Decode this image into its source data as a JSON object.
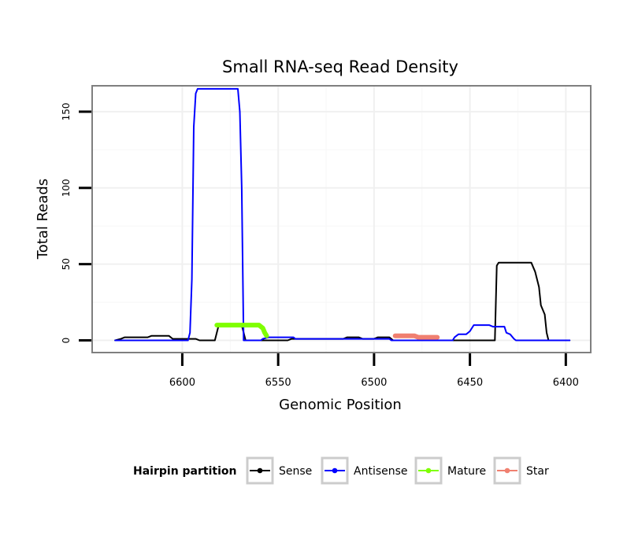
{
  "chart_data": {
    "type": "line",
    "title": "Small RNA-seq Read Density",
    "xlabel": "Genomic Position",
    "ylabel": "Total Reads",
    "x_reversed": true,
    "xlim": [
      6647,
      6387
    ],
    "ylim": [
      -8,
      167
    ],
    "xticks": [
      6600,
      6550,
      6500,
      6450,
      6400
    ],
    "yticks": [
      0,
      50,
      100,
      150
    ],
    "grid": true,
    "legend": {
      "title": "Hairpin partition",
      "position": "bottom",
      "entries": [
        "Sense",
        "Antisense",
        "Mature",
        "Star"
      ]
    },
    "series": [
      {
        "name": "Sense",
        "color": "#000000",
        "width": 2,
        "points": [
          [
            6635,
            0
          ],
          [
            6632,
            1
          ],
          [
            6630,
            2
          ],
          [
            6618,
            2
          ],
          [
            6616,
            3
          ],
          [
            6607,
            3
          ],
          [
            6605,
            1
          ],
          [
            6593,
            1
          ],
          [
            6591,
            0
          ],
          [
            6583,
            0
          ],
          [
            6581,
            10
          ],
          [
            6569,
            10
          ],
          [
            6567,
            0
          ],
          [
            6545,
            0
          ],
          [
            6543,
            1
          ],
          [
            6516,
            1
          ],
          [
            6514,
            2
          ],
          [
            6508,
            2
          ],
          [
            6506,
            1
          ],
          [
            6500,
            1
          ],
          [
            6498,
            2
          ],
          [
            6492,
            2
          ],
          [
            6490,
            0
          ],
          [
            6437,
            0
          ],
          [
            6436,
            49
          ],
          [
            6435,
            51
          ],
          [
            6418,
            51
          ],
          [
            6416,
            45
          ],
          [
            6414,
            35
          ],
          [
            6413,
            23
          ],
          [
            6411,
            17
          ],
          [
            6410,
            5
          ],
          [
            6409,
            0
          ],
          [
            6398,
            0
          ]
        ]
      },
      {
        "name": "Antisense",
        "color": "#0000ff",
        "width": 2,
        "points": [
          [
            6635,
            0
          ],
          [
            6597,
            0
          ],
          [
            6596,
            5
          ],
          [
            6595,
            40
          ],
          [
            6594,
            140
          ],
          [
            6593,
            162
          ],
          [
            6592,
            165
          ],
          [
            6571,
            165
          ],
          [
            6570,
            150
          ],
          [
            6569,
            100
          ],
          [
            6568,
            0
          ],
          [
            6559,
            0
          ],
          [
            6558,
            1
          ],
          [
            6555,
            2
          ],
          [
            6542,
            2
          ],
          [
            6541,
            1
          ],
          [
            6492,
            1
          ],
          [
            6491,
            0
          ],
          [
            6459,
            0
          ],
          [
            6458,
            2
          ],
          [
            6456,
            4
          ],
          [
            6452,
            4
          ],
          [
            6450,
            6
          ],
          [
            6448,
            10
          ],
          [
            6440,
            10
          ],
          [
            6438,
            9
          ],
          [
            6432,
            9
          ],
          [
            6431,
            5
          ],
          [
            6429,
            4
          ],
          [
            6427,
            1
          ],
          [
            6426,
            0
          ],
          [
            6398,
            0
          ]
        ]
      },
      {
        "name": "Mature",
        "color": "#7fff00",
        "width": 6,
        "points": [
          [
            6582,
            10
          ],
          [
            6578,
            10
          ],
          [
            6574,
            10
          ],
          [
            6570,
            10
          ],
          [
            6566,
            10
          ],
          [
            6562,
            10
          ],
          [
            6560,
            10
          ],
          [
            6558,
            8
          ],
          [
            6557,
            5
          ],
          [
            6556,
            3
          ]
        ]
      },
      {
        "name": "Star",
        "color": "#f08070",
        "width": 6,
        "points": [
          [
            6489,
            3
          ],
          [
            6485,
            3
          ],
          [
            6481,
            3
          ],
          [
            6479,
            3
          ],
          [
            6477,
            2
          ],
          [
            6474,
            2
          ],
          [
            6470,
            2
          ],
          [
            6467,
            2
          ]
        ]
      }
    ]
  }
}
